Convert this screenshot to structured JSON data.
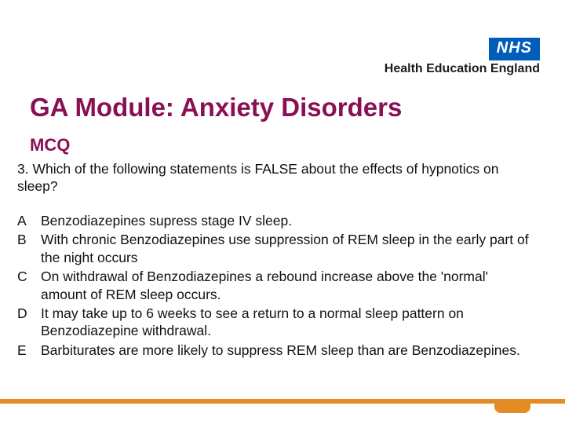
{
  "branding": {
    "nhs_label": "NHS",
    "hee_label": "Health Education England",
    "nhs_bg": "#005eb8",
    "nhs_fg": "#ffffff"
  },
  "title": "GA Module: Anxiety Disorders",
  "subtitle": "MCQ",
  "title_color": "#8a1054",
  "question": "3. Which of the following statements is FALSE about the effects of hypnotics on sleep?",
  "options": [
    {
      "letter": "A",
      "text": "Benzodiazepines supress stage IV sleep."
    },
    {
      "letter": "B",
      "text": "With chronic Benzodiazepines use suppression of REM sleep in  the early part of the night occurs"
    },
    {
      "letter": "C",
      "text": "On withdrawal of Benzodiazepines a rebound increase above the 'normal' amount of REM sleep occurs."
    },
    {
      "letter": "D",
      "text": "It may take up to 6 weeks to see a return to a normal sleep pattern on Benzodiazepine withdrawal."
    },
    {
      "letter": "E",
      "text": "Barbiturates are more likely to suppress REM sleep than are Benzodiazepines."
    }
  ],
  "accent_color": "#e38b24",
  "body_fontsize": 17.5,
  "title_fontsize": 33,
  "subtitle_fontsize": 22,
  "background_color": "#ffffff"
}
